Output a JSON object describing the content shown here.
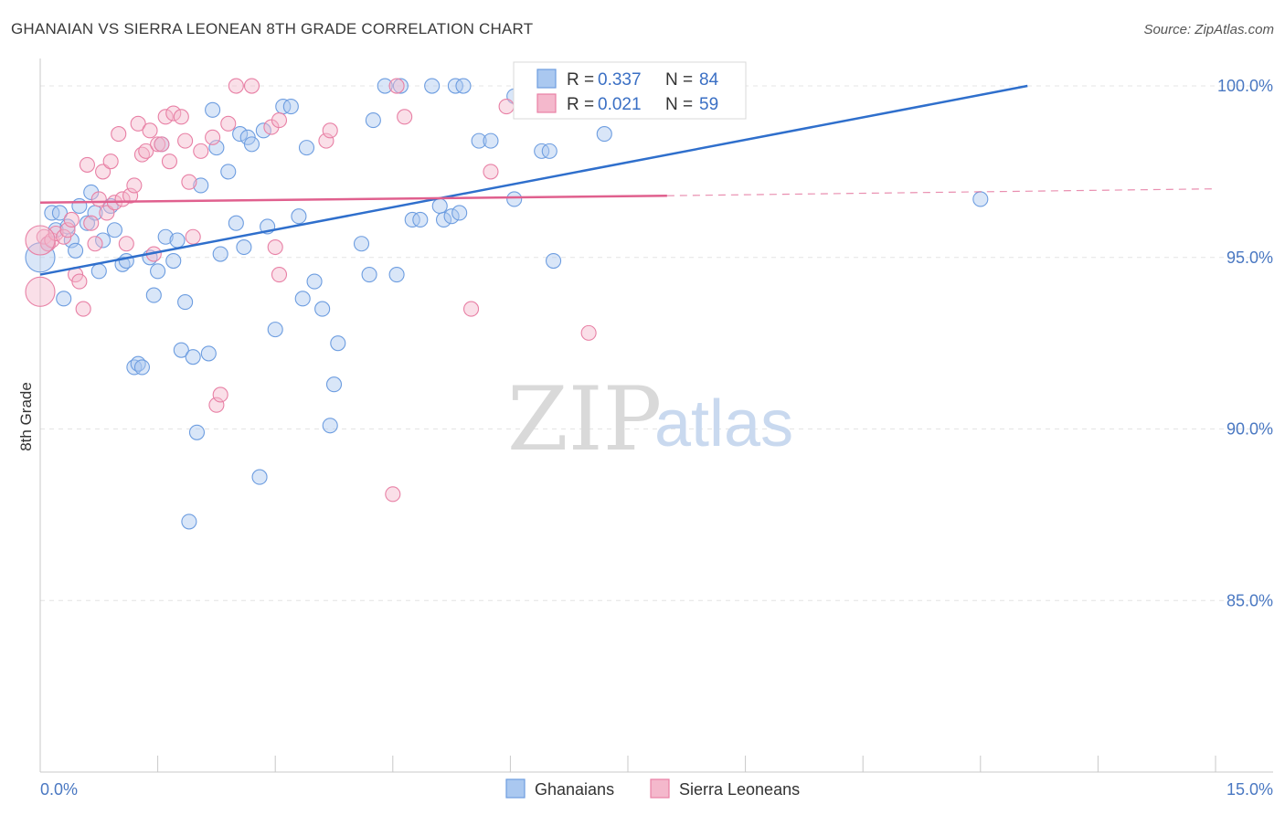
{
  "title": "GHANAIAN VS SIERRA LEONEAN 8TH GRADE CORRELATION CHART",
  "source": "Source: ZipAtlas.com",
  "colors": {
    "blue": "#6d9de0",
    "blue_fill": "#aac8f0",
    "pink": "#e880a5",
    "pink_fill": "#f4b8cc",
    "blue_line": "#2f6fcc",
    "pink_line": "#e0608e",
    "tick": "#4a78c2"
  },
  "chart_data": {
    "type": "scatter",
    "xlabel": "",
    "ylabel": "8th Grade",
    "xlim": [
      0,
      15
    ],
    "ylim": [
      80,
      100.8
    ],
    "x_tick_labels": [
      {
        "value": 0,
        "label": "0.0%"
      },
      {
        "value": 15,
        "label": "15.0%"
      }
    ],
    "y_tick_labels": [
      {
        "value": 100,
        "label": "100.0%"
      },
      {
        "value": 95,
        "label": "95.0%"
      },
      {
        "value": 90,
        "label": "90.0%"
      },
      {
        "value": 85,
        "label": "85.0%"
      }
    ],
    "legend": {
      "position": "top-center",
      "entries": [
        {
          "r_label": "R = ",
          "r_value": "0.337",
          "n_label": "N = ",
          "n_value": "84"
        },
        {
          "r_label": "R = ",
          "r_value": "0.021",
          "n_label": "N = ",
          "n_value": "59"
        }
      ]
    },
    "bottom_legend": [
      "Ghanaians",
      "Sierra Leoneans"
    ],
    "watermark": {
      "zip": "ZIP",
      "atlas": "atlas"
    },
    "series": [
      {
        "name": "Ghanaians",
        "color": "#6d9de0",
        "trend": {
          "x": [
            0,
            12.6
          ],
          "y": [
            94.5,
            100.0
          ]
        },
        "points": [
          [
            0.0,
            95.0
          ],
          [
            0.1,
            95.4
          ],
          [
            0.15,
            96.3
          ],
          [
            0.2,
            95.8
          ],
          [
            0.25,
            96.3
          ],
          [
            0.3,
            93.8
          ],
          [
            0.35,
            95.9
          ],
          [
            0.4,
            95.5
          ],
          [
            0.45,
            95.2
          ],
          [
            0.5,
            96.5
          ],
          [
            0.6,
            96.0
          ],
          [
            0.65,
            96.9
          ],
          [
            0.7,
            96.3
          ],
          [
            0.75,
            94.6
          ],
          [
            0.8,
            95.5
          ],
          [
            0.9,
            96.5
          ],
          [
            0.95,
            95.8
          ],
          [
            1.05,
            94.8
          ],
          [
            1.1,
            94.9
          ],
          [
            1.2,
            91.8
          ],
          [
            1.25,
            91.9
          ],
          [
            1.3,
            91.8
          ],
          [
            1.4,
            95.0
          ],
          [
            1.45,
            93.9
          ],
          [
            1.5,
            94.6
          ],
          [
            1.55,
            98.3
          ],
          [
            1.6,
            95.6
          ],
          [
            1.7,
            94.9
          ],
          [
            1.75,
            95.5
          ],
          [
            1.8,
            92.3
          ],
          [
            1.85,
            93.7
          ],
          [
            1.9,
            87.3
          ],
          [
            1.95,
            92.1
          ],
          [
            2.0,
            89.9
          ],
          [
            2.05,
            97.1
          ],
          [
            2.15,
            92.2
          ],
          [
            2.2,
            99.3
          ],
          [
            2.25,
            98.2
          ],
          [
            2.3,
            95.1
          ],
          [
            2.4,
            97.5
          ],
          [
            2.5,
            96.0
          ],
          [
            2.55,
            98.6
          ],
          [
            2.6,
            95.3
          ],
          [
            2.65,
            98.5
          ],
          [
            2.7,
            98.3
          ],
          [
            2.8,
            88.6
          ],
          [
            2.85,
            98.7
          ],
          [
            2.9,
            95.9
          ],
          [
            3.0,
            92.9
          ],
          [
            3.1,
            99.4
          ],
          [
            3.2,
            99.4
          ],
          [
            3.3,
            96.2
          ],
          [
            3.35,
            93.8
          ],
          [
            3.4,
            98.2
          ],
          [
            3.5,
            94.3
          ],
          [
            3.6,
            93.5
          ],
          [
            3.7,
            90.1
          ],
          [
            3.75,
            91.3
          ],
          [
            3.8,
            92.5
          ],
          [
            4.1,
            95.4
          ],
          [
            4.2,
            94.5
          ],
          [
            4.25,
            99.0
          ],
          [
            4.4,
            100.0
          ],
          [
            4.6,
            100.0
          ],
          [
            4.55,
            94.5
          ],
          [
            4.75,
            96.1
          ],
          [
            4.85,
            96.1
          ],
          [
            5.0,
            100.0
          ],
          [
            5.1,
            96.5
          ],
          [
            5.15,
            96.1
          ],
          [
            5.25,
            96.2
          ],
          [
            5.3,
            100.0
          ],
          [
            5.4,
            100.0
          ],
          [
            5.35,
            96.3
          ],
          [
            5.6,
            98.4
          ],
          [
            5.75,
            98.4
          ],
          [
            6.05,
            99.7
          ],
          [
            6.05,
            96.7
          ],
          [
            6.4,
            98.1
          ],
          [
            6.5,
            98.1
          ],
          [
            6.55,
            94.9
          ],
          [
            7.2,
            100.0
          ],
          [
            7.2,
            98.6
          ],
          [
            12.0,
            96.7
          ]
        ]
      },
      {
        "name": "Sierra Leoneans",
        "color": "#e880a5",
        "trend": {
          "x": [
            0,
            8.0
          ],
          "y": [
            96.6,
            96.8
          ]
        },
        "trend_dashed": {
          "x": [
            8.0,
            15.0
          ],
          "y": [
            96.8,
            97.0
          ]
        },
        "points": [
          [
            0.0,
            94.0
          ],
          [
            0.05,
            95.6
          ],
          [
            0.1,
            95.4
          ],
          [
            0.15,
            95.5
          ],
          [
            0.2,
            95.7
          ],
          [
            0.3,
            95.6
          ],
          [
            0.35,
            95.8
          ],
          [
            0.4,
            96.1
          ],
          [
            0.45,
            94.5
          ],
          [
            0.5,
            94.3
          ],
          [
            0.55,
            93.5
          ],
          [
            0.6,
            97.7
          ],
          [
            0.65,
            96.0
          ],
          [
            0.7,
            95.4
          ],
          [
            0.75,
            96.7
          ],
          [
            0.8,
            97.5
          ],
          [
            0.85,
            96.3
          ],
          [
            0.9,
            97.8
          ],
          [
            0.95,
            96.6
          ],
          [
            1.0,
            98.6
          ],
          [
            1.05,
            96.7
          ],
          [
            1.1,
            95.4
          ],
          [
            1.15,
            96.8
          ],
          [
            1.2,
            97.1
          ],
          [
            1.25,
            98.9
          ],
          [
            1.3,
            98.0
          ],
          [
            1.35,
            98.1
          ],
          [
            1.4,
            98.7
          ],
          [
            1.45,
            95.1
          ],
          [
            1.5,
            98.3
          ],
          [
            1.55,
            98.3
          ],
          [
            1.6,
            99.1
          ],
          [
            1.65,
            97.8
          ],
          [
            1.7,
            99.2
          ],
          [
            1.8,
            99.1
          ],
          [
            1.85,
            98.4
          ],
          [
            1.9,
            97.2
          ],
          [
            1.95,
            95.6
          ],
          [
            2.05,
            98.1
          ],
          [
            2.2,
            98.5
          ],
          [
            2.25,
            90.7
          ],
          [
            2.3,
            91.0
          ],
          [
            2.4,
            98.9
          ],
          [
            2.5,
            100.0
          ],
          [
            2.7,
            100.0
          ],
          [
            2.95,
            98.8
          ],
          [
            3.05,
            99.0
          ],
          [
            3.0,
            95.3
          ],
          [
            3.05,
            94.5
          ],
          [
            3.65,
            98.4
          ],
          [
            3.7,
            98.7
          ],
          [
            4.55,
            100.0
          ],
          [
            4.5,
            88.1
          ],
          [
            4.65,
            99.1
          ],
          [
            5.5,
            93.5
          ],
          [
            5.75,
            97.5
          ],
          [
            5.95,
            99.4
          ],
          [
            7.0,
            92.8
          ],
          [
            0.0,
            95.5
          ]
        ]
      }
    ]
  }
}
